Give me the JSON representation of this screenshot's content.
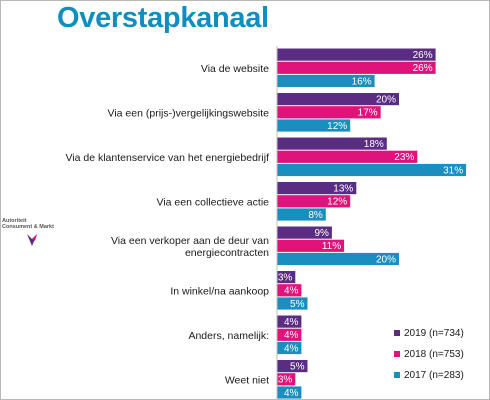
{
  "title": "Overstapkanaal",
  "logo": {
    "line1": "Autoriteit",
    "line2": "Consument & Markt"
  },
  "chart_data": {
    "type": "bar",
    "orientation": "horizontal",
    "categories": [
      [
        "Via de website"
      ],
      [
        "Via een (prijs-)vergelijkingswebsite"
      ],
      [
        "Via de klantenservice van het energiebedrijf"
      ],
      [
        "Via een collectieve actie"
      ],
      [
        "Via een verkoper aan de deur van",
        "energiecontracten"
      ],
      [
        "In winkel/na aankoop"
      ],
      [
        "Anders, namelijk:"
      ],
      [
        "Weet niet"
      ]
    ],
    "series": [
      {
        "name": "2019 (n=734)",
        "color": "#5b2d82",
        "values": [
          26,
          20,
          18,
          13,
          9,
          3,
          4,
          5
        ]
      },
      {
        "name": "2018 (n=753)",
        "color": "#e0137a",
        "values": [
          26,
          17,
          23,
          12,
          11,
          4,
          4,
          3
        ]
      },
      {
        "name": "2017 (n=283)",
        "color": "#1a8fbf",
        "values": [
          16,
          12,
          31,
          8,
          20,
          5,
          4,
          4
        ]
      }
    ],
    "value_suffix": "%",
    "legend_position": "bottom-right",
    "grid": false
  }
}
